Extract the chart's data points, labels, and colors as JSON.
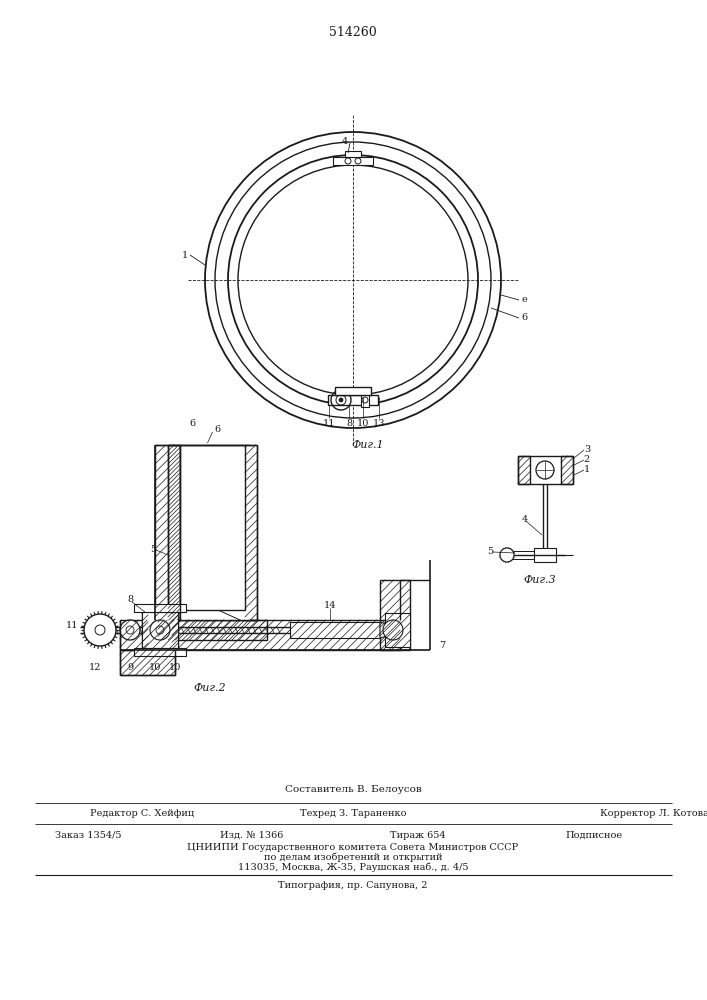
{
  "title": "514260",
  "bg_color": "#ffffff",
  "fig1_label": "Фиг.1",
  "fig2_label": "Фиг.2",
  "fig3_label": "Фиг.3",
  "footer_composer": "Составитель В. Белоусов",
  "footer_editor": "Редактор С. Хейфиц",
  "footer_tech": "Техред З. Тараненко",
  "footer_corrector": "Корректор Л. Котова",
  "footer_order": "Заказ 1354/5",
  "footer_izd": "Изд. № 1366",
  "footer_tirazh": "Тираж 654",
  "footer_podpisnoye": "Подписное",
  "footer_tsniipи": "ЦНИИПИ Государственного комитета Совета Министров СССР",
  "footer_po_delam": "по делам изобретений и открытий",
  "footer_address": "113035, Москва, Ж-35, Раушская наб., д. 4/5",
  "footer_tipografiya": "Типография, пр. Сапунова, 2",
  "line_color": "#1a1a1a"
}
